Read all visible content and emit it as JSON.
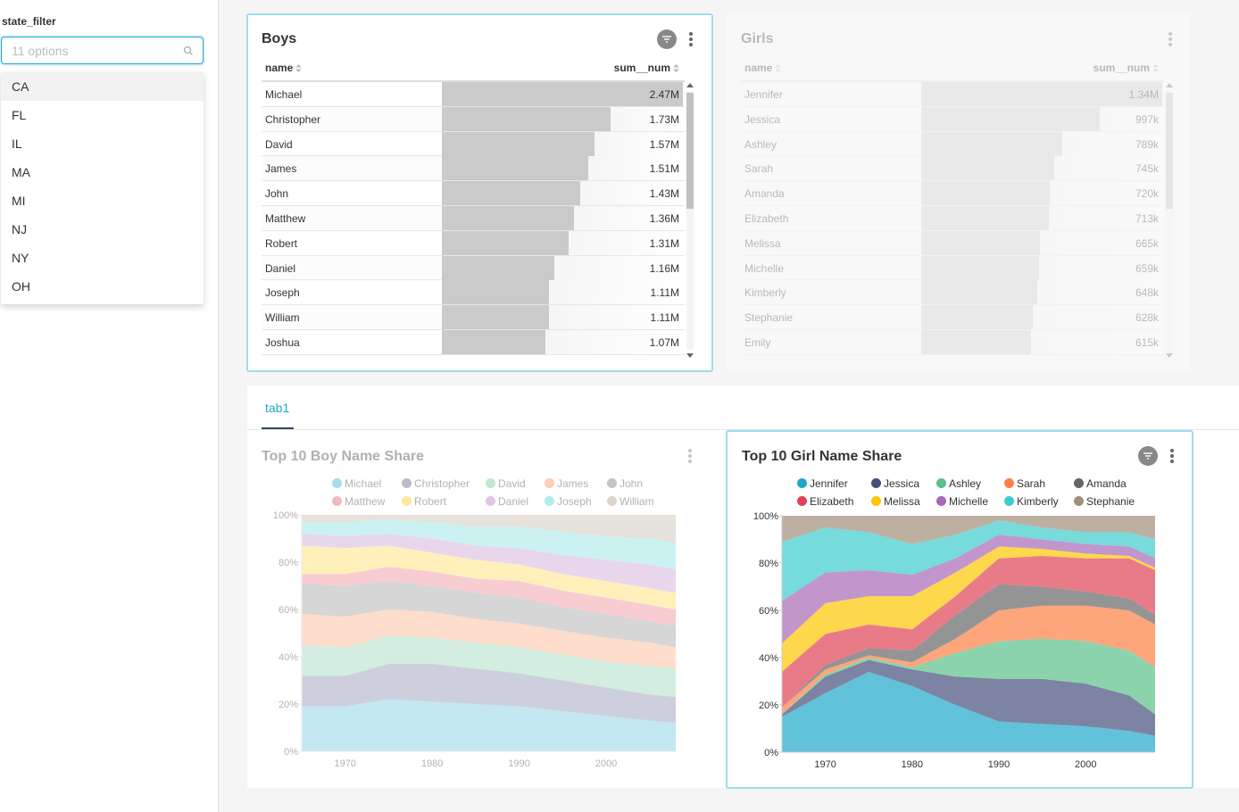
{
  "filter": {
    "title": "state_filter",
    "placeholder": "11 options",
    "options": [
      "CA",
      "FL",
      "IL",
      "MA",
      "MI",
      "NJ",
      "NY",
      "OH"
    ]
  },
  "boys": {
    "title": "Boys",
    "col_name": "name",
    "col_num": "sum__num",
    "rows": [
      {
        "name": "Michael",
        "value": "2.47M",
        "num": 2.47
      },
      {
        "name": "Christopher",
        "value": "1.73M",
        "num": 1.73
      },
      {
        "name": "David",
        "value": "1.57M",
        "num": 1.57
      },
      {
        "name": "James",
        "value": "1.51M",
        "num": 1.51
      },
      {
        "name": "John",
        "value": "1.43M",
        "num": 1.43
      },
      {
        "name": "Matthew",
        "value": "1.36M",
        "num": 1.36
      },
      {
        "name": "Robert",
        "value": "1.31M",
        "num": 1.31
      },
      {
        "name": "Daniel",
        "value": "1.16M",
        "num": 1.16
      },
      {
        "name": "Joseph",
        "value": "1.11M",
        "num": 1.11
      },
      {
        "name": "William",
        "value": "1.11M",
        "num": 1.11
      },
      {
        "name": "Joshua",
        "value": "1.07M",
        "num": 1.07
      }
    ]
  },
  "girls": {
    "title": "Girls",
    "col_name": "name",
    "col_num": "sum__num",
    "rows": [
      {
        "name": "Jennifer",
        "value": "1.34M",
        "num": 1340
      },
      {
        "name": "Jessica",
        "value": "997k",
        "num": 997
      },
      {
        "name": "Ashley",
        "value": "789k",
        "num": 789
      },
      {
        "name": "Sarah",
        "value": "745k",
        "num": 745
      },
      {
        "name": "Amanda",
        "value": "720k",
        "num": 720
      },
      {
        "name": "Elizabeth",
        "value": "713k",
        "num": 713
      },
      {
        "name": "Melissa",
        "value": "665k",
        "num": 665
      },
      {
        "name": "Michelle",
        "value": "659k",
        "num": 659
      },
      {
        "name": "Kimberly",
        "value": "648k",
        "num": 648
      },
      {
        "name": "Stephanie",
        "value": "628k",
        "num": 628
      },
      {
        "name": "Emily",
        "value": "615k",
        "num": 615
      }
    ]
  },
  "tabs": {
    "tab1": "tab1"
  },
  "chart_data": [
    {
      "type": "area",
      "title": "Top 10 Boy Name Share",
      "stacking": "expand",
      "x": [
        1965,
        1970,
        1975,
        1980,
        1985,
        1990,
        1995,
        2000,
        2005,
        2008
      ],
      "ylim": [
        0,
        100
      ],
      "yticks": [
        "0%",
        "20%",
        "40%",
        "60%",
        "80%",
        "100%"
      ],
      "xticks": [
        1970,
        1980,
        1990,
        2000
      ],
      "series": [
        {
          "name": "Michael",
          "color": "#1FA8C9",
          "values": [
            19,
            19,
            22,
            21,
            20,
            19,
            17,
            15,
            13,
            12
          ]
        },
        {
          "name": "Christopher",
          "color": "#454E7C",
          "values": [
            13,
            13,
            15,
            16,
            15,
            14,
            13,
            12,
            11,
            11
          ]
        },
        {
          "name": "David",
          "color": "#5AC189",
          "values": [
            13,
            12,
            12,
            11,
            11,
            11,
            11,
            11,
            12,
            12
          ]
        },
        {
          "name": "James",
          "color": "#FF7F44",
          "values": [
            13,
            13,
            11,
            11,
            10,
            10,
            10,
            10,
            10,
            9
          ]
        },
        {
          "name": "John",
          "color": "#666666",
          "values": [
            13,
            13,
            12,
            11,
            11,
            11,
            10,
            10,
            9,
            9
          ]
        },
        {
          "name": "Matthew",
          "color": "#E04355",
          "values": [
            4,
            5,
            6,
            6,
            6,
            7,
            7,
            7,
            7,
            7
          ]
        },
        {
          "name": "Robert",
          "color": "#FCC700",
          "values": [
            12,
            11,
            9,
            8,
            8,
            7,
            7,
            7,
            7,
            7
          ]
        },
        {
          "name": "Daniel",
          "color": "#A868B7",
          "values": [
            5,
            5,
            5,
            6,
            6,
            7,
            8,
            9,
            10,
            10
          ]
        },
        {
          "name": "Joseph",
          "color": "#3CCCCB",
          "values": [
            5,
            6,
            6,
            7,
            8,
            9,
            10,
            10,
            11,
            11
          ]
        },
        {
          "name": "William",
          "color": "#A38F79",
          "values": [
            3,
            3,
            2,
            3,
            5,
            5,
            7,
            9,
            10,
            12
          ]
        }
      ]
    },
    {
      "type": "area",
      "title": "Top 10 Girl Name Share",
      "stacking": "expand",
      "x": [
        1965,
        1970,
        1975,
        1980,
        1985,
        1990,
        1995,
        2000,
        2005,
        2008
      ],
      "ylim": [
        0,
        100
      ],
      "yticks": [
        "0%",
        "20%",
        "40%",
        "60%",
        "80%",
        "100%"
      ],
      "xticks": [
        1970,
        1980,
        1990,
        2000
      ],
      "series": [
        {
          "name": "Jennifer",
          "color": "#1FA8C9",
          "values": [
            15,
            25,
            34,
            28,
            20,
            13,
            12,
            11,
            9,
            7
          ]
        },
        {
          "name": "Jessica",
          "color": "#454E7C",
          "values": [
            1,
            7,
            5,
            7,
            12,
            18,
            19,
            18,
            15,
            9
          ]
        },
        {
          "name": "Ashley",
          "color": "#5AC189",
          "values": [
            0,
            1,
            1,
            1,
            10,
            16,
            17,
            18,
            19,
            20
          ]
        },
        {
          "name": "Sarah",
          "color": "#FF7F44",
          "values": [
            3,
            2,
            1,
            2,
            6,
            13,
            14,
            15,
            17,
            18
          ]
        },
        {
          "name": "Amanda",
          "color": "#666666",
          "values": [
            0,
            2,
            3,
            5,
            10,
            11,
            8,
            6,
            5,
            4
          ]
        },
        {
          "name": "Elizabeth",
          "color": "#E04355",
          "values": [
            15,
            13,
            10,
            9,
            8,
            11,
            13,
            14,
            17,
            19
          ]
        },
        {
          "name": "Melissa",
          "color": "#FCC700",
          "values": [
            12,
            13,
            12,
            14,
            10,
            5,
            3,
            2,
            1,
            1
          ]
        },
        {
          "name": "Michelle",
          "color": "#A868B7",
          "values": [
            18,
            13,
            11,
            9,
            6,
            5,
            4,
            4,
            4,
            4
          ]
        },
        {
          "name": "Kimberly",
          "color": "#3CCCCB",
          "values": [
            25,
            19,
            16,
            13,
            10,
            6,
            5,
            5,
            6,
            8
          ]
        },
        {
          "name": "Stephanie",
          "color": "#A38F79",
          "values": [
            11,
            5,
            7,
            12,
            8,
            2,
            5,
            7,
            7,
            10
          ]
        }
      ]
    }
  ]
}
